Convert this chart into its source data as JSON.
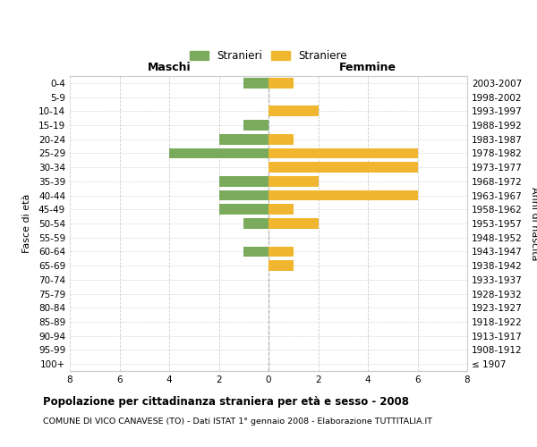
{
  "age_groups": [
    "100+",
    "95-99",
    "90-94",
    "85-89",
    "80-84",
    "75-79",
    "70-74",
    "65-69",
    "60-64",
    "55-59",
    "50-54",
    "45-49",
    "40-44",
    "35-39",
    "30-34",
    "25-29",
    "20-24",
    "15-19",
    "10-14",
    "5-9",
    "0-4"
  ],
  "birth_years": [
    "≤ 1907",
    "1908-1912",
    "1913-1917",
    "1918-1922",
    "1923-1927",
    "1928-1932",
    "1933-1937",
    "1938-1942",
    "1943-1947",
    "1948-1952",
    "1953-1957",
    "1958-1962",
    "1963-1967",
    "1968-1972",
    "1973-1977",
    "1978-1982",
    "1983-1987",
    "1988-1992",
    "1993-1997",
    "1998-2002",
    "2003-2007"
  ],
  "maschi": [
    0,
    0,
    0,
    0,
    0,
    0,
    0,
    0,
    1,
    0,
    1,
    2,
    2,
    2,
    0,
    4,
    2,
    1,
    0,
    0,
    1
  ],
  "femmine": [
    0,
    0,
    0,
    0,
    0,
    0,
    0,
    1,
    1,
    0,
    2,
    1,
    6,
    2,
    6,
    6,
    1,
    0,
    2,
    0,
    1
  ],
  "male_color": "#7aaa5b",
  "female_color": "#f0b630",
  "title": "Popolazione per cittadinanza straniera per età e sesso - 2008",
  "subtitle": "COMUNE DI VICO CANAVESE (TO) - Dati ISTAT 1° gennaio 2008 - Elaborazione TUTTITALIA.IT",
  "xlabel_left": "Maschi",
  "xlabel_right": "Femmine",
  "ylabel_left": "Fasce di età",
  "ylabel_right": "Anni di nascita",
  "legend_male": "Stranieri",
  "legend_female": "Straniere",
  "xlim": 8,
  "background_color": "#ffffff",
  "grid_color": "#cccccc"
}
